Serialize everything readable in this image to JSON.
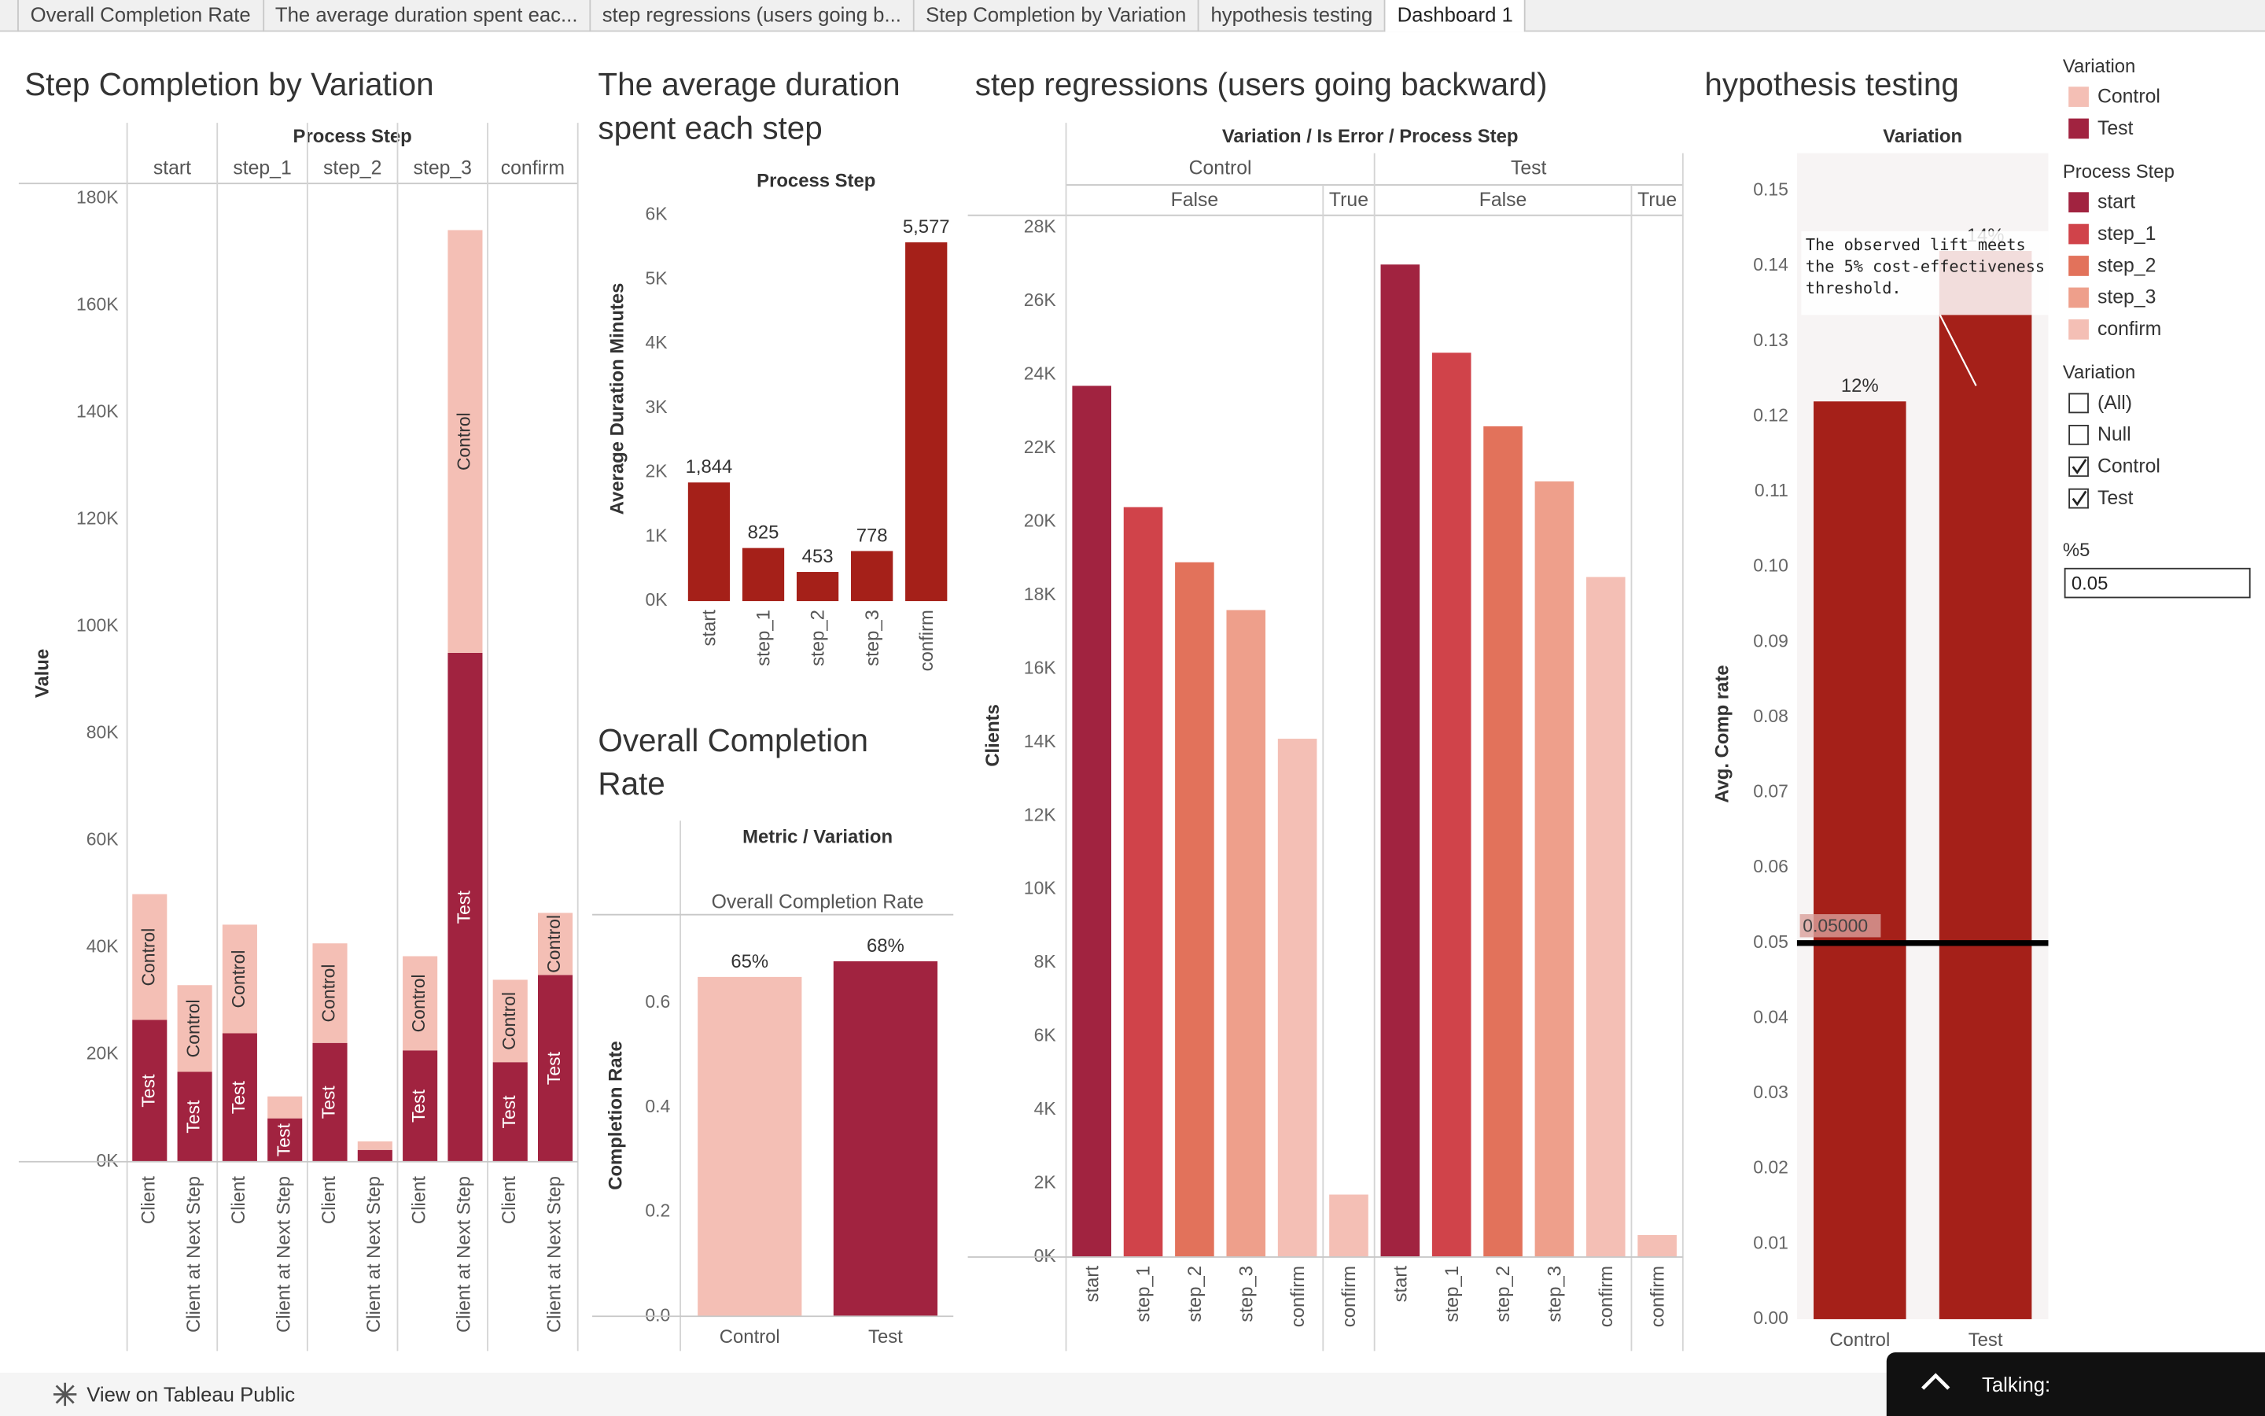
{
  "tabs": [
    {
      "label": "Overall Completion Rate",
      "active": false
    },
    {
      "label": "The average duration spent eac...",
      "active": false
    },
    {
      "label": "step regressions (users going b...",
      "active": false
    },
    {
      "label": "Step Completion by Variation",
      "active": false
    },
    {
      "label": "hypothesis testing",
      "active": false
    },
    {
      "label": "Dashboard 1",
      "active": true
    }
  ],
  "chart_data": [
    {
      "type": "stacked_bar",
      "title": "Step Completion by Variation",
      "facet_label": "Process Step",
      "groups": [
        "start",
        "step_1",
        "step_2",
        "step_3",
        "confirm"
      ],
      "categories": [
        "Client",
        "Client at Next Step",
        "Client",
        "Client at Next Step",
        "Client",
        "Client at Next Step",
        "Client",
        "Client at Next Step",
        "Client",
        "Client at Next Step"
      ],
      "y_label": "Value",
      "series": [
        {
          "name": "Test",
          "color": "#a12340",
          "values": [
            26500,
            16800,
            24000,
            8100,
            22200,
            2200,
            20800,
            95100,
            18600,
            34900
          ]
        },
        {
          "name": "Control",
          "color": "#f4bfb5",
          "values": [
            23500,
            16200,
            20300,
            4100,
            18600,
            1600,
            17600,
            79000,
            15400,
            11600
          ]
        }
      ],
      "ylim": [
        0,
        182000
      ],
      "yticks": [
        {
          "value": 0,
          "label": "0K"
        },
        {
          "value": 20000,
          "label": "20K"
        },
        {
          "value": 40000,
          "label": "40K"
        },
        {
          "value": 60000,
          "label": "60K"
        },
        {
          "value": 80000,
          "label": "80K"
        },
        {
          "value": 100000,
          "label": "100K"
        },
        {
          "value": 120000,
          "label": "120K"
        },
        {
          "value": 140000,
          "label": "140K"
        },
        {
          "value": 160000,
          "label": "160K"
        },
        {
          "value": 180000,
          "label": "180K"
        }
      ]
    },
    {
      "type": "bar",
      "title": "The average duration spent each step",
      "x_label": "Process Step",
      "y_label": "Average Duration Minutes",
      "categories": [
        "start",
        "step_1",
        "step_2",
        "step_3",
        "confirm"
      ],
      "values": [
        1844,
        825,
        453,
        778,
        5577
      ],
      "value_labels": [
        "1,844",
        "825",
        "453",
        "778",
        "5,577"
      ],
      "color": "#a52019",
      "ylim": [
        0,
        6200
      ],
      "yticks": [
        {
          "value": 0,
          "label": "0K"
        },
        {
          "value": 1000,
          "label": "1K"
        },
        {
          "value": 2000,
          "label": "2K"
        },
        {
          "value": 3000,
          "label": "3K"
        },
        {
          "value": 4000,
          "label": "4K"
        },
        {
          "value": 5000,
          "label": "5K"
        },
        {
          "value": 6000,
          "label": "6K"
        }
      ]
    },
    {
      "type": "bar",
      "title": "Overall Completion Rate",
      "header": "Metric / Variation",
      "metric": "Overall Completion Rate",
      "y_label": "Completion Rate",
      "categories": [
        "Control",
        "Test"
      ],
      "values": [
        0.65,
        0.68
      ],
      "value_labels": [
        "65%",
        "68%"
      ],
      "colors": [
        "#f4bfb5",
        "#a12340"
      ],
      "ylim": [
        0,
        0.75
      ],
      "yticks": [
        {
          "value": 0,
          "label": "0.0"
        },
        0.2,
        0.4,
        0.6
      ]
    },
    {
      "type": "faceted_bar",
      "title": "step regressions (users going backward)",
      "header": "Variation / Is Error / Process Step",
      "y_label": "Clients",
      "panels": [
        {
          "variation": "Control",
          "is_error": "False",
          "categories": [
            "start",
            "step_1",
            "step_2",
            "step_3",
            "confirm"
          ],
          "values": [
            23700,
            20400,
            18900,
            17600,
            14100
          ],
          "colors": [
            "#a12340",
            "#d0434a",
            "#e2725b",
            "#ee9f8b",
            "#f4bfb5"
          ]
        },
        {
          "variation": "Control",
          "is_error": "True",
          "categories": [
            "confirm"
          ],
          "values": [
            1700
          ],
          "colors": [
            "#f4bfb5"
          ]
        },
        {
          "variation": "Test",
          "is_error": "False",
          "categories": [
            "start",
            "step_1",
            "step_2",
            "step_3",
            "confirm"
          ],
          "values": [
            27000,
            24600,
            22600,
            21100,
            18500
          ],
          "colors": [
            "#a12340",
            "#d0434a",
            "#e2725b",
            "#ee9f8b",
            "#f4bfb5"
          ]
        },
        {
          "variation": "Test",
          "is_error": "True",
          "categories": [
            "confirm"
          ],
          "values": [
            600
          ],
          "colors": [
            "#f4bfb5"
          ]
        }
      ],
      "ylim": [
        0,
        28300
      ],
      "yticks": [
        {
          "value": 0,
          "label": "0K"
        },
        {
          "value": 2000,
          "label": "2K"
        },
        {
          "value": 4000,
          "label": "4K"
        },
        {
          "value": 6000,
          "label": "6K"
        },
        {
          "value": 8000,
          "label": "8K"
        },
        {
          "value": 10000,
          "label": "10K"
        },
        {
          "value": 12000,
          "label": "12K"
        },
        {
          "value": 14000,
          "label": "14K"
        },
        {
          "value": 16000,
          "label": "16K"
        },
        {
          "value": 18000,
          "label": "18K"
        },
        {
          "value": 20000,
          "label": "20K"
        },
        {
          "value": 22000,
          "label": "22K"
        },
        {
          "value": 24000,
          "label": "24K"
        },
        {
          "value": 26000,
          "label": "26K"
        },
        {
          "value": 28000,
          "label": "28K"
        }
      ]
    },
    {
      "type": "bar",
      "title": "hypothesis testing",
      "header": "Variation",
      "y_label": "Avg. Comp rate",
      "categories": [
        "Control",
        "Test"
      ],
      "values": [
        0.122,
        0.142
      ],
      "value_labels": [
        "12%",
        "14%"
      ],
      "color": "#a52019",
      "ylim": [
        0,
        0.155
      ],
      "yticks": [
        {
          "value": 0,
          "label": "0.00"
        },
        0.01,
        0.02,
        0.03,
        0.04,
        0.05,
        0.06,
        0.07,
        0.08,
        0.09,
        {
          "value": 0.1,
          "label": "0.10"
        },
        0.11,
        0.12,
        0.13,
        0.14,
        0.15
      ],
      "reference_line": {
        "value": 0.05,
        "label": "0.05000"
      },
      "annotation": "The observed lift meets the 5% cost-effectiveness threshold."
    }
  ],
  "legends": [
    {
      "title": "Variation",
      "items": [
        {
          "name": "Control",
          "color": "#f4bfb5"
        },
        {
          "name": "Test",
          "color": "#a12340"
        }
      ]
    },
    {
      "title": "Process Step",
      "items": [
        {
          "name": "start",
          "color": "#a12340"
        },
        {
          "name": "step_1",
          "color": "#d0434a"
        },
        {
          "name": "step_2",
          "color": "#e2725b"
        },
        {
          "name": "step_3",
          "color": "#ee9f8b"
        },
        {
          "name": "confirm",
          "color": "#f4bfb5"
        }
      ]
    }
  ],
  "filter": {
    "title": "Variation",
    "items": [
      {
        "name": "(All)",
        "checked": false
      },
      {
        "name": "Null",
        "checked": false
      },
      {
        "name": "Control",
        "checked": true
      },
      {
        "name": "Test",
        "checked": true
      }
    ]
  },
  "parameter": {
    "title": "%5",
    "value": "0.05"
  },
  "footer": {
    "link": "View on Tableau Public",
    "talking": "Talking:"
  }
}
